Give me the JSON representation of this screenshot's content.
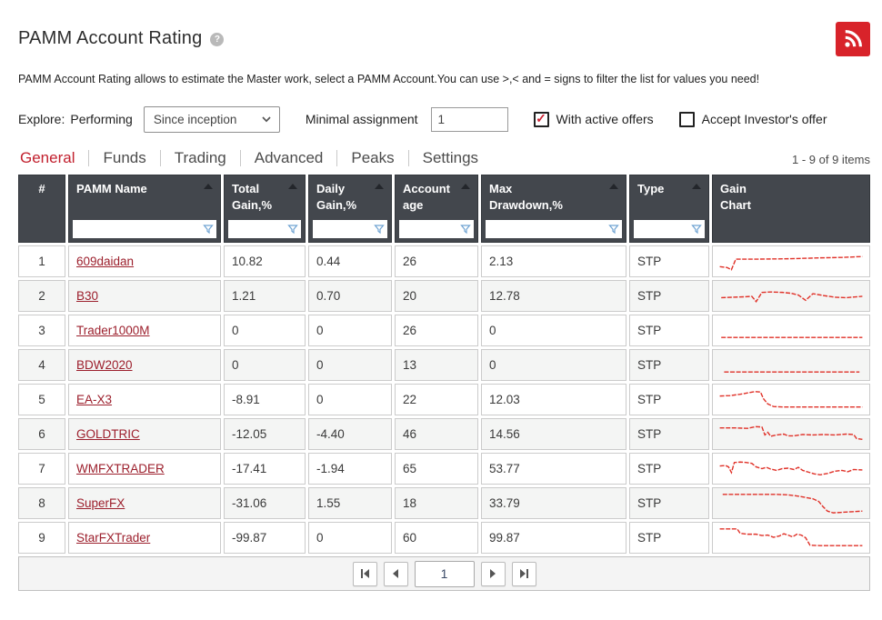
{
  "page": {
    "title": "PAMM Account Rating",
    "help_glyph": "?",
    "description": "PAMM Account Rating allows to estimate the Master work, select a PAMM Account.You can use >,< and = signs to filter the list for values you need!",
    "items_info": "1 - 9 of 9 items"
  },
  "filters": {
    "explore_label": "Explore:",
    "performing_label": "Performing",
    "period_selected": "Since inception",
    "minimal_assignment_label": "Minimal assignment",
    "minimal_assignment_value": "1",
    "with_active_offers_label": "With active offers",
    "with_active_offers_checked": true,
    "accept_investors_offer_label": "Accept Investor's offer",
    "accept_investors_offer_checked": false,
    "check_glyph": "✓"
  },
  "tabs": [
    {
      "label": "General",
      "active": true
    },
    {
      "label": "Funds",
      "active": false
    },
    {
      "label": "Trading",
      "active": false
    },
    {
      "label": "Advanced",
      "active": false
    },
    {
      "label": "Peaks",
      "active": false
    },
    {
      "label": "Settings",
      "active": false
    }
  ],
  "table": {
    "columns": [
      {
        "label": "#",
        "sortable": false,
        "filterable": false
      },
      {
        "label": "PAMM Name",
        "sortable": true,
        "filterable": true
      },
      {
        "label": "Total\nGain,%",
        "sortable": true,
        "filterable": true
      },
      {
        "label": "Daily\nGain,%",
        "sortable": true,
        "filterable": true
      },
      {
        "label": "Account\nage",
        "sortable": true,
        "filterable": true
      },
      {
        "label": "Max\nDrawdown,%",
        "sortable": true,
        "filterable": true
      },
      {
        "label": "Type",
        "sortable": true,
        "filterable": true
      },
      {
        "label": "Gain\nChart",
        "sortable": false,
        "filterable": false
      }
    ],
    "rows": [
      {
        "num": "1",
        "name": "609daidan",
        "total_gain": "10.82",
        "daily_gain": "0.44",
        "age": "26",
        "max_drawdown": "2.13",
        "type": "STP",
        "spark": [
          [
            1,
            21
          ],
          [
            6,
            22
          ],
          [
            9,
            24.5
          ],
          [
            12,
            12.5
          ],
          [
            25,
            12.5
          ],
          [
            50,
            12
          ],
          [
            70,
            11
          ],
          [
            85,
            10.5
          ],
          [
            99,
            9.5
          ]
        ]
      },
      {
        "num": "2",
        "name": "B30",
        "total_gain": "1.21",
        "daily_gain": "0.70",
        "age": "20",
        "max_drawdown": "12.78",
        "type": "STP",
        "spark": [
          [
            2,
            17
          ],
          [
            10,
            16.5
          ],
          [
            18,
            16
          ],
          [
            23,
            15.5
          ],
          [
            26,
            21.5
          ],
          [
            30,
            11
          ],
          [
            36,
            10.5
          ],
          [
            44,
            11
          ],
          [
            50,
            12
          ],
          [
            55,
            14
          ],
          [
            60,
            20
          ],
          [
            65,
            12.5
          ],
          [
            72,
            14.5
          ],
          [
            80,
            16.5
          ],
          [
            88,
            17
          ],
          [
            99,
            15.5
          ]
        ]
      },
      {
        "num": "3",
        "name": "Trader1000M",
        "total_gain": "0",
        "daily_gain": "0",
        "age": "26",
        "max_drawdown": "0",
        "type": "STP",
        "spark": [
          [
            2,
            23
          ],
          [
            99,
            23
          ]
        ]
      },
      {
        "num": "4",
        "name": "BDW2020",
        "total_gain": "0",
        "daily_gain": "0",
        "age": "13",
        "max_drawdown": "0",
        "type": "STP",
        "spark": [
          [
            4,
            23
          ],
          [
            97,
            23
          ]
        ]
      },
      {
        "num": "5",
        "name": "EA-X3",
        "total_gain": "-8.91",
        "daily_gain": "0",
        "age": "22",
        "max_drawdown": "12.03",
        "type": "STP",
        "spark": [
          [
            1,
            11
          ],
          [
            8,
            10.5
          ],
          [
            15,
            9
          ],
          [
            25,
            6
          ],
          [
            29,
            6.5
          ],
          [
            31,
            14
          ],
          [
            34,
            20
          ],
          [
            38,
            23
          ],
          [
            45,
            23.5
          ],
          [
            99,
            23.5
          ]
        ]
      },
      {
        "num": "6",
        "name": "GOLDTRIC",
        "total_gain": "-12.05",
        "daily_gain": "-4.40",
        "age": "46",
        "max_drawdown": "14.56",
        "type": "STP",
        "spark": [
          [
            1,
            8
          ],
          [
            12,
            8
          ],
          [
            20,
            8.5
          ],
          [
            26,
            6.5
          ],
          [
            30,
            7
          ],
          [
            32,
            16
          ],
          [
            34,
            13
          ],
          [
            36,
            17.5
          ],
          [
            40,
            16
          ],
          [
            45,
            15
          ],
          [
            48,
            17
          ],
          [
            52,
            17
          ],
          [
            58,
            15.5
          ],
          [
            65,
            16
          ],
          [
            72,
            15.5
          ],
          [
            80,
            16
          ],
          [
            88,
            15
          ],
          [
            93,
            15.5
          ],
          [
            95,
            20
          ],
          [
            99,
            21
          ]
        ]
      },
      {
        "num": "7",
        "name": "WMFXTRADER",
        "total_gain": "-17.41",
        "daily_gain": "-1.94",
        "age": "65",
        "max_drawdown": "53.77",
        "type": "STP",
        "spark": [
          [
            1,
            12
          ],
          [
            5,
            11.5
          ],
          [
            7,
            13
          ],
          [
            9,
            19.5
          ],
          [
            11,
            8
          ],
          [
            15,
            7.5
          ],
          [
            19,
            8
          ],
          [
            23,
            9
          ],
          [
            26,
            13
          ],
          [
            30,
            15
          ],
          [
            33,
            13.5
          ],
          [
            36,
            15.5
          ],
          [
            40,
            17
          ],
          [
            44,
            15
          ],
          [
            48,
            14.5
          ],
          [
            52,
            16
          ],
          [
            55,
            13.5
          ],
          [
            58,
            17
          ],
          [
            62,
            19
          ],
          [
            66,
            21
          ],
          [
            70,
            22
          ],
          [
            75,
            20.5
          ],
          [
            80,
            18
          ],
          [
            85,
            17
          ],
          [
            89,
            18.5
          ],
          [
            93,
            16
          ],
          [
            99,
            16.5
          ]
        ]
      },
      {
        "num": "8",
        "name": "SuperFX",
        "total_gain": "-31.06",
        "daily_gain": "1.55",
        "age": "18",
        "max_drawdown": "33.79",
        "type": "STP",
        "spark": [
          [
            3,
            5
          ],
          [
            40,
            5
          ],
          [
            48,
            5.5
          ],
          [
            55,
            7
          ],
          [
            60,
            8.5
          ],
          [
            65,
            10
          ],
          [
            69,
            13
          ],
          [
            72,
            19
          ],
          [
            75,
            24
          ],
          [
            79,
            26
          ],
          [
            84,
            25.5
          ],
          [
            99,
            24
          ]
        ]
      },
      {
        "num": "9",
        "name": "StarFXTrader",
        "total_gain": "-99.87",
        "daily_gain": "0",
        "age": "60",
        "max_drawdown": "99.87",
        "type": "STP",
        "spark": [
          [
            1,
            5
          ],
          [
            13,
            5
          ],
          [
            15,
            10
          ],
          [
            20,
            11
          ],
          [
            26,
            11
          ],
          [
            30,
            12.5
          ],
          [
            34,
            12
          ],
          [
            38,
            14.5
          ],
          [
            42,
            13
          ],
          [
            45,
            10.5
          ],
          [
            48,
            12
          ],
          [
            51,
            14
          ],
          [
            54,
            11
          ],
          [
            57,
            12
          ],
          [
            60,
            15
          ],
          [
            63,
            23.5
          ],
          [
            70,
            24
          ],
          [
            99,
            24
          ]
        ]
      }
    ]
  },
  "pagination": {
    "current_page": "1"
  },
  "colors": {
    "accent_red": "#c2202e",
    "link_red": "#9c1f2c",
    "spark_red": "#e03128",
    "rss_red": "#d8232a",
    "header_bg": "#43474d",
    "funnel_blue": "#6fa3d2"
  }
}
